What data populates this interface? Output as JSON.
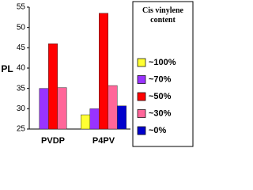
{
  "chart_data": {
    "type": "bar",
    "y_label": "PL",
    "legend_title": "Cis vinylene content",
    "categories": [
      "PVDP",
      "P4PV"
    ],
    "series": [
      {
        "name": "~100%",
        "color": "#ffff33",
        "values": [
          null,
          28.5
        ]
      },
      {
        "name": "~70%",
        "color": "#9933ff",
        "values": [
          35,
          30
        ]
      },
      {
        "name": "~50%",
        "color": "#ff0000",
        "values": [
          46,
          53.5
        ]
      },
      {
        "name": "~30%",
        "color": "#ff6699",
        "values": [
          35.2,
          35.7
        ]
      },
      {
        "name": "~0%",
        "color": "#0000cc",
        "values": [
          null,
          30.7
        ]
      }
    ],
    "ylim": [
      25,
      55
    ],
    "yticks": [
      25,
      30,
      35,
      40,
      45,
      50,
      55
    ]
  }
}
